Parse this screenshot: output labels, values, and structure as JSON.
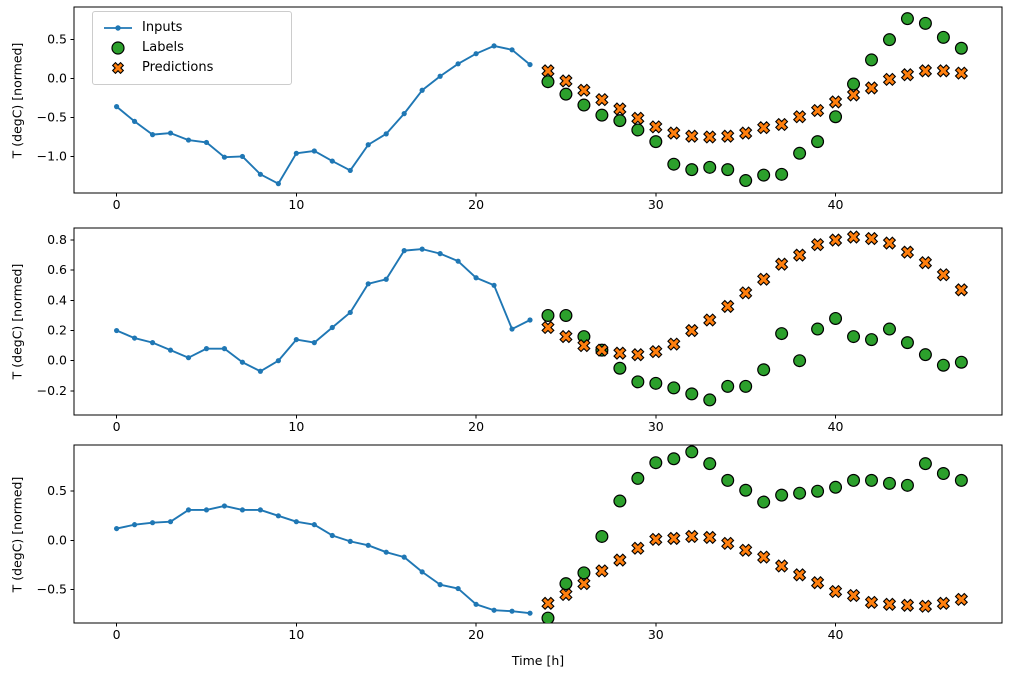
{
  "figure": {
    "ylabel": "T (degC) [normed]",
    "xlabel": "Time [h]",
    "background": "#ffffff",
    "axis_color": "#000000",
    "legend": {
      "items": [
        {
          "label": "Inputs",
          "marker": "line-dot",
          "color": "#1f77b4"
        },
        {
          "label": "Labels",
          "marker": "circle",
          "color": "#2ca02c"
        },
        {
          "label": "Predictions",
          "marker": "x-cross",
          "color": "#ff7f0e"
        }
      ]
    }
  },
  "chart_data": [
    {
      "type": "line",
      "title": "",
      "ylabel": "T (degC) [normed]",
      "xlim": [
        -2.37,
        49.26
      ],
      "ylim": [
        -1.47,
        0.92
      ],
      "xticks": [
        0,
        10,
        20,
        30,
        40
      ],
      "yticks": [
        0.5,
        0.0,
        -0.5,
        -1.0
      ],
      "grid": false,
      "legend_position": "upper left",
      "series": [
        {
          "name": "Inputs",
          "style": "line-dot",
          "color": "#1f77b4",
          "x": [
            0,
            1,
            2,
            3,
            4,
            5,
            6,
            7,
            8,
            9,
            10,
            11,
            12,
            13,
            14,
            15,
            16,
            17,
            18,
            19,
            20,
            21,
            22,
            23
          ],
          "y": [
            -0.36,
            -0.55,
            -0.72,
            -0.7,
            -0.79,
            -0.82,
            -1.01,
            -1.0,
            -1.23,
            -1.35,
            -0.96,
            -0.93,
            -1.06,
            -1.18,
            -0.85,
            -0.71,
            -0.45,
            -0.15,
            0.03,
            0.19,
            0.32,
            0.42,
            0.37,
            0.18
          ]
        },
        {
          "name": "Labels",
          "style": "scatter-circle",
          "color": "#2ca02c",
          "x": [
            24,
            25,
            26,
            27,
            28,
            29,
            30,
            31,
            32,
            33,
            34,
            35,
            36,
            37,
            38,
            39,
            40,
            41,
            42,
            43,
            44,
            45,
            46,
            47
          ],
          "y": [
            -0.04,
            -0.2,
            -0.34,
            -0.47,
            -0.54,
            -0.66,
            -0.81,
            -1.1,
            -1.17,
            -1.14,
            -1.17,
            -1.31,
            -1.24,
            -1.23,
            -0.96,
            -0.81,
            -0.49,
            -0.07,
            0.24,
            0.5,
            0.77,
            0.71,
            0.53,
            0.39
          ]
        },
        {
          "name": "Predictions",
          "style": "scatter-x",
          "color": "#ff7f0e",
          "x": [
            24,
            25,
            26,
            27,
            28,
            29,
            30,
            31,
            32,
            33,
            34,
            35,
            36,
            37,
            38,
            39,
            40,
            41,
            42,
            43,
            44,
            45,
            46,
            47
          ],
          "y": [
            0.1,
            -0.03,
            -0.15,
            -0.27,
            -0.39,
            -0.51,
            -0.62,
            -0.7,
            -0.74,
            -0.75,
            -0.74,
            -0.7,
            -0.63,
            -0.59,
            -0.49,
            -0.41,
            -0.3,
            -0.21,
            -0.12,
            -0.01,
            0.05,
            0.1,
            0.1,
            0.07
          ]
        }
      ]
    },
    {
      "type": "line",
      "title": "",
      "ylabel": "T (degC) [normed]",
      "xlim": [
        -2.37,
        49.26
      ],
      "ylim": [
        -0.36,
        0.88
      ],
      "xticks": [
        0,
        10,
        20,
        30,
        40
      ],
      "yticks": [
        0.8,
        0.6,
        0.4,
        0.2,
        0.0,
        -0.2
      ],
      "grid": false,
      "series": [
        {
          "name": "Inputs",
          "style": "line-dot",
          "color": "#1f77b4",
          "x": [
            0,
            1,
            2,
            3,
            4,
            5,
            6,
            7,
            8,
            9,
            10,
            11,
            12,
            13,
            14,
            15,
            16,
            17,
            18,
            19,
            20,
            21,
            22,
            23
          ],
          "y": [
            0.2,
            0.15,
            0.12,
            0.07,
            0.02,
            0.08,
            0.08,
            -0.01,
            -0.07,
            0.0,
            0.14,
            0.12,
            0.22,
            0.32,
            0.51,
            0.54,
            0.73,
            0.74,
            0.71,
            0.66,
            0.55,
            0.5,
            0.21,
            0.27
          ]
        },
        {
          "name": "Labels",
          "style": "scatter-circle",
          "color": "#2ca02c",
          "x": [
            24,
            25,
            26,
            27,
            28,
            29,
            30,
            31,
            32,
            33,
            34,
            35,
            36,
            37,
            38,
            39,
            40,
            41,
            42,
            43,
            44,
            45,
            46,
            47
          ],
          "y": [
            0.3,
            0.3,
            0.16,
            0.07,
            -0.05,
            -0.14,
            -0.15,
            -0.18,
            -0.22,
            -0.26,
            -0.17,
            -0.17,
            -0.06,
            0.18,
            0.0,
            0.21,
            0.28,
            0.16,
            0.14,
            0.21,
            0.12,
            0.04,
            -0.03,
            -0.01
          ]
        },
        {
          "name": "Predictions",
          "style": "scatter-x",
          "color": "#ff7f0e",
          "x": [
            24,
            25,
            26,
            27,
            28,
            29,
            30,
            31,
            32,
            33,
            34,
            35,
            36,
            37,
            38,
            39,
            40,
            41,
            42,
            43,
            44,
            45,
            46,
            47
          ],
          "y": [
            0.22,
            0.16,
            0.1,
            0.07,
            0.05,
            0.04,
            0.06,
            0.11,
            0.2,
            0.27,
            0.36,
            0.45,
            0.54,
            0.64,
            0.7,
            0.77,
            0.8,
            0.82,
            0.81,
            0.78,
            0.72,
            0.65,
            0.57,
            0.47
          ]
        }
      ]
    },
    {
      "type": "line",
      "title": "",
      "ylabel": "T (degC) [normed]",
      "xlabel": "Time [h]",
      "xlim": [
        -2.37,
        49.26
      ],
      "ylim": [
        -0.84,
        0.97
      ],
      "xticks": [
        0,
        10,
        20,
        30,
        40
      ],
      "yticks": [
        0.5,
        0.0,
        -0.5
      ],
      "grid": false,
      "series": [
        {
          "name": "Inputs",
          "style": "line-dot",
          "color": "#1f77b4",
          "x": [
            0,
            1,
            2,
            3,
            4,
            5,
            6,
            7,
            8,
            9,
            10,
            11,
            12,
            13,
            14,
            15,
            16,
            17,
            18,
            19,
            20,
            21,
            22,
            23
          ],
          "y": [
            0.12,
            0.16,
            0.18,
            0.19,
            0.31,
            0.31,
            0.35,
            0.31,
            0.31,
            0.25,
            0.19,
            0.16,
            0.05,
            -0.01,
            -0.05,
            -0.12,
            -0.17,
            -0.32,
            -0.45,
            -0.49,
            -0.65,
            -0.71,
            -0.72,
            -0.74
          ]
        },
        {
          "name": "Labels",
          "style": "scatter-circle",
          "color": "#2ca02c",
          "x": [
            24,
            25,
            26,
            27,
            28,
            29,
            30,
            31,
            32,
            33,
            34,
            35,
            36,
            37,
            38,
            39,
            40,
            41,
            42,
            43,
            44,
            45,
            46,
            47
          ],
          "y": [
            -0.79,
            -0.44,
            -0.33,
            0.04,
            0.4,
            0.63,
            0.79,
            0.83,
            0.9,
            0.78,
            0.61,
            0.51,
            0.39,
            0.46,
            0.48,
            0.5,
            0.54,
            0.61,
            0.61,
            0.58,
            0.56,
            0.78,
            0.68,
            0.61
          ]
        },
        {
          "name": "Predictions",
          "style": "scatter-x",
          "color": "#ff7f0e",
          "x": [
            24,
            25,
            26,
            27,
            28,
            29,
            30,
            31,
            32,
            33,
            34,
            35,
            36,
            37,
            38,
            39,
            40,
            41,
            42,
            43,
            44,
            45,
            46,
            47
          ],
          "y": [
            -0.64,
            -0.55,
            -0.44,
            -0.31,
            -0.2,
            -0.08,
            0.01,
            0.02,
            0.04,
            0.03,
            -0.03,
            -0.1,
            -0.17,
            -0.26,
            -0.35,
            -0.43,
            -0.52,
            -0.56,
            -0.63,
            -0.65,
            -0.66,
            -0.67,
            -0.64,
            -0.6
          ]
        }
      ]
    }
  ]
}
